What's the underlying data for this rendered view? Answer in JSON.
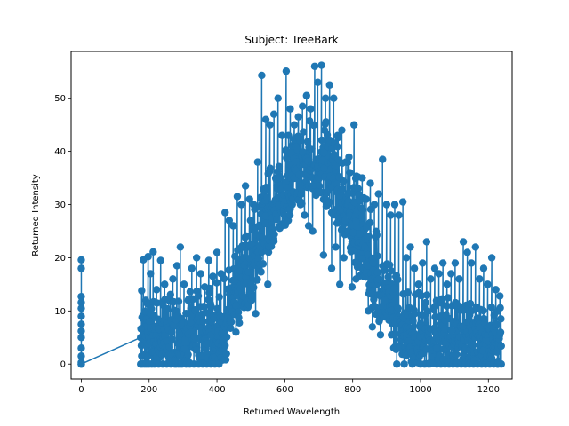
{
  "chart_data": {
    "type": "line",
    "title": "Subject: TreeBark",
    "xlabel": "Returned Wavelength",
    "ylabel": "Returned Intensity",
    "xlim": [
      -30,
      1270
    ],
    "ylim": [
      -2.8,
      58.8
    ],
    "xticks": [
      0,
      200,
      400,
      600,
      800,
      1000,
      1200
    ],
    "yticks": [
      0,
      10,
      20,
      30,
      40,
      50
    ],
    "grid": false,
    "markers": true,
    "series": [
      {
        "color": "#1f77b4",
        "points": [
          [
            0,
            0
          ],
          [
            0,
            19.6
          ],
          [
            0,
            18
          ],
          [
            0,
            12.7
          ],
          [
            0,
            11.6
          ],
          [
            0,
            10.5
          ],
          [
            0,
            9
          ],
          [
            0,
            7.5
          ],
          [
            0,
            6.2
          ],
          [
            0,
            5
          ],
          [
            0,
            3
          ],
          [
            0,
            1.5
          ],
          [
            0,
            0.3
          ],
          [
            0,
            0
          ],
          [
            175,
            5
          ],
          [
            178,
            13.8
          ],
          [
            180,
            0
          ],
          [
            183,
            19.6
          ],
          [
            187,
            0
          ],
          [
            190,
            12
          ],
          [
            193,
            0
          ],
          [
            197,
            20.2
          ],
          [
            200,
            0
          ],
          [
            204,
            17
          ],
          [
            208,
            0
          ],
          [
            212,
            21.1
          ],
          [
            216,
            0
          ],
          [
            222,
            14
          ],
          [
            228,
            0
          ],
          [
            234,
            19.5
          ],
          [
            240,
            0
          ],
          [
            246,
            15
          ],
          [
            252,
            0
          ],
          [
            258,
            12
          ],
          [
            264,
            0
          ],
          [
            270,
            16
          ],
          [
            276,
            0
          ],
          [
            282,
            18.5
          ],
          [
            287,
            0
          ],
          [
            292,
            22
          ],
          [
            297,
            0
          ],
          [
            303,
            15
          ],
          [
            309,
            0
          ],
          [
            315,
            12
          ],
          [
            320,
            0
          ],
          [
            326,
            18
          ],
          [
            332,
            0
          ],
          [
            340,
            20
          ],
          [
            346,
            0
          ],
          [
            352,
            17
          ],
          [
            358,
            0
          ],
          [
            364,
            14.5
          ],
          [
            370,
            0
          ],
          [
            376,
            19.5
          ],
          [
            382,
            0
          ],
          [
            388,
            16.5
          ],
          [
            394,
            0
          ],
          [
            400,
            21
          ],
          [
            406,
            0
          ],
          [
            412,
            17
          ],
          [
            418,
            3
          ],
          [
            424,
            28.5
          ],
          [
            430,
            8
          ],
          [
            436,
            27
          ],
          [
            442,
            12
          ],
          [
            448,
            26
          ],
          [
            454,
            14
          ],
          [
            460,
            31.5
          ],
          [
            466,
            18
          ],
          [
            472,
            30
          ],
          [
            478,
            20
          ],
          [
            484,
            33.5
          ],
          [
            490,
            22
          ],
          [
            496,
            31
          ],
          [
            502,
            12
          ],
          [
            508,
            30
          ],
          [
            514,
            9.5
          ],
          [
            520,
            38
          ],
          [
            526,
            24
          ],
          [
            532,
            54.3
          ],
          [
            538,
            28
          ],
          [
            544,
            46
          ],
          [
            550,
            15
          ],
          [
            556,
            45
          ],
          [
            562,
            30
          ],
          [
            568,
            47
          ],
          [
            574,
            28
          ],
          [
            580,
            50
          ],
          [
            586,
            26
          ],
          [
            592,
            43
          ],
          [
            598,
            30
          ],
          [
            604,
            55.1
          ],
          [
            610,
            32
          ],
          [
            616,
            48
          ],
          [
            622,
            30
          ],
          [
            628,
            45
          ],
          [
            634,
            32
          ],
          [
            640,
            46.5
          ],
          [
            646,
            30
          ],
          [
            652,
            48.5
          ],
          [
            658,
            28
          ],
          [
            664,
            50.5
          ],
          [
            670,
            26
          ],
          [
            676,
            48
          ],
          [
            682,
            25
          ],
          [
            688,
            56
          ],
          [
            692,
            35
          ],
          [
            697,
            53
          ],
          [
            702,
            38
          ],
          [
            708,
            56.2
          ],
          [
            714,
            20.5
          ],
          [
            720,
            50
          ],
          [
            726,
            30
          ],
          [
            732,
            52.5
          ],
          [
            738,
            18
          ],
          [
            744,
            50
          ],
          [
            750,
            22
          ],
          [
            756,
            43
          ],
          [
            762,
            15
          ],
          [
            768,
            44
          ],
          [
            774,
            20
          ],
          [
            780,
            38
          ],
          [
            786,
            25
          ],
          [
            792,
            36
          ],
          [
            798,
            14.5
          ],
          [
            804,
            45
          ],
          [
            810,
            16
          ],
          [
            816,
            33
          ],
          [
            822,
            20
          ],
          [
            828,
            35
          ],
          [
            834,
            18
          ],
          [
            840,
            31
          ],
          [
            846,
            10
          ],
          [
            852,
            34
          ],
          [
            858,
            7
          ],
          [
            864,
            30
          ],
          [
            870,
            15
          ],
          [
            876,
            32
          ],
          [
            882,
            5.5
          ],
          [
            888,
            38.5
          ],
          [
            894,
            12
          ],
          [
            900,
            30
          ],
          [
            906,
            10
          ],
          [
            912,
            28
          ],
          [
            918,
            14
          ],
          [
            924,
            30
          ],
          [
            930,
            0
          ],
          [
            936,
            28
          ],
          [
            942,
            8
          ],
          [
            948,
            30.5
          ],
          [
            952,
            0
          ],
          [
            958,
            20
          ],
          [
            964,
            6
          ],
          [
            970,
            22
          ],
          [
            976,
            0
          ],
          [
            982,
            18
          ],
          [
            988,
            4
          ],
          [
            994,
            15
          ],
          [
            1000,
            0
          ],
          [
            1006,
            19
          ],
          [
            1012,
            0
          ],
          [
            1018,
            23
          ],
          [
            1024,
            0
          ],
          [
            1030,
            16
          ],
          [
            1036,
            2
          ],
          [
            1042,
            18
          ],
          [
            1048,
            0
          ],
          [
            1054,
            17
          ],
          [
            1060,
            0
          ],
          [
            1066,
            19
          ],
          [
            1072,
            0
          ],
          [
            1078,
            15
          ],
          [
            1084,
            0
          ],
          [
            1090,
            17
          ],
          [
            1096,
            0
          ],
          [
            1102,
            19
          ],
          [
            1108,
            0
          ],
          [
            1114,
            16
          ],
          [
            1120,
            0
          ],
          [
            1126,
            23
          ],
          [
            1132,
            0
          ],
          [
            1138,
            21
          ],
          [
            1144,
            0
          ],
          [
            1150,
            19
          ],
          [
            1156,
            0
          ],
          [
            1162,
            22
          ],
          [
            1168,
            0
          ],
          [
            1174,
            16
          ],
          [
            1180,
            0
          ],
          [
            1186,
            18
          ],
          [
            1192,
            0
          ],
          [
            1198,
            15
          ],
          [
            1204,
            0
          ],
          [
            1210,
            20
          ],
          [
            1216,
            0
          ],
          [
            1222,
            14
          ],
          [
            1228,
            0
          ],
          [
            1234,
            12.8
          ],
          [
            1238,
            0
          ]
        ],
        "dense_band": {
          "step": 2,
          "x_range": [
            175,
            1238
          ],
          "envelope_x": [
            175,
            250,
            350,
            420,
            500,
            560,
            620,
            680,
            740,
            800,
            860,
            920,
            980,
            1060,
            1140,
            1238
          ],
          "envelope_low": [
            0,
            0,
            0,
            0,
            12,
            22,
            28,
            32,
            28,
            20,
            10,
            3,
            0,
            0,
            0,
            0
          ],
          "envelope_high": [
            12,
            13,
            14,
            16,
            28,
            38,
            44,
            47,
            45,
            38,
            28,
            18,
            14,
            13,
            12,
            11
          ]
        }
      }
    ]
  }
}
